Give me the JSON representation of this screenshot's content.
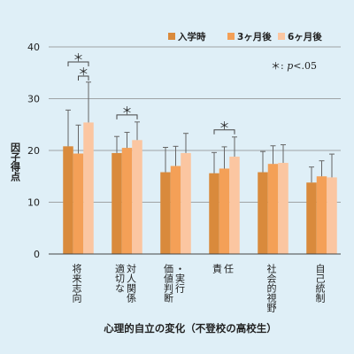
{
  "chart_data": {
    "type": "bar",
    "title": "",
    "xlabel": "心理的自立の変化（不登校の高校生）",
    "ylabel": "因子得点",
    "ylim": [
      0,
      40
    ],
    "yticks": [
      0,
      10,
      20,
      30,
      40
    ],
    "grid": true,
    "legend_position": "top-right",
    "categories": [
      "将来志向",
      "適切な対人関係",
      "価値判断・実行",
      "責任",
      "社会的視野",
      "自己統制"
    ],
    "category_label_columns": [
      [
        "将来志向"
      ],
      [
        "対人関係",
        "適切な"
      ],
      [
        "・実行",
        "価値判断"
      ],
      [
        "任",
        "責"
      ],
      [
        "社会的視野"
      ],
      [
        "自己統制"
      ]
    ],
    "series": [
      {
        "name": "入学時",
        "color": "#d98a3c",
        "values": [
          20.8,
          19.5,
          15.8,
          15.6,
          15.8,
          13.8
        ],
        "err_plus": [
          7.0,
          3.2,
          4.8,
          4.0,
          4.0,
          3.0
        ]
      },
      {
        "name": "3ヶ月後",
        "color": "#f4a057",
        "values": [
          19.4,
          20.5,
          17.0,
          16.5,
          17.4,
          15.0
        ],
        "err_plus": [
          5.5,
          3.0,
          3.8,
          4.2,
          3.5,
          3.0
        ]
      },
      {
        "name": "6ヶ月後",
        "color": "#fbc6a1",
        "values": [
          25.4,
          22.0,
          19.5,
          18.8,
          17.6,
          14.8
        ],
        "err_plus": [
          7.8,
          3.5,
          3.8,
          3.8,
          3.5,
          4.5
        ]
      }
    ],
    "significance_mark": "＊",
    "significance_note": {
      "star": "＊",
      "sep": ": ",
      "p": "p",
      "rest": "<.05"
    },
    "significance_brackets": [
      {
        "category": 0,
        "from_series": 0,
        "to_series": 2,
        "level": "upper"
      },
      {
        "category": 0,
        "from_series": 1,
        "to_series": 2,
        "level": "lower"
      },
      {
        "category": 1,
        "from_series": 0,
        "to_series": 2,
        "level": "upper"
      },
      {
        "category": 3,
        "from_series": 0,
        "to_series": 2,
        "level": "upper"
      }
    ]
  }
}
